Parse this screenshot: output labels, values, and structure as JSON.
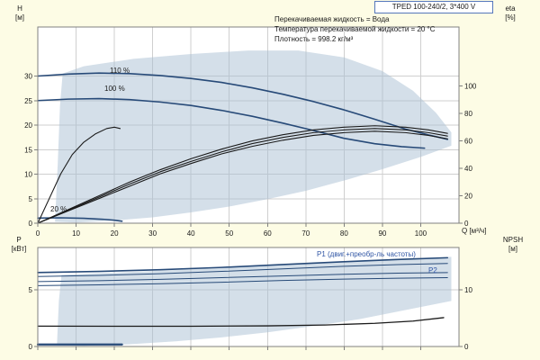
{
  "header": {
    "pump_label": "TPED 100-240/2, 3*400 V"
  },
  "info_lines": [
    "Перекачиваемая жидкость = Вода",
    "Температура перекачиваемой жидкости = 20 °C",
    "Плотность = 998.2 кг/м³"
  ],
  "labels": {
    "h_name": "H",
    "h_unit": "[м]",
    "eta_name": "eta",
    "eta_unit": "[%]",
    "q_label": "Q [м³/ч]",
    "p_name": "P",
    "p_unit": "[кВт]",
    "npsh_name": "NPSH",
    "npsh_unit": "[м]",
    "c110": "110 %",
    "c100": "100 %",
    "c20": "20 %",
    "p1": "P1 (двиг.+преобр-ль частоты)",
    "p2": "P2"
  },
  "colors": {
    "bg": "#fdfce5",
    "plot_bg": "#ffffff",
    "grid": "#cfcfcf",
    "axis": "#808080",
    "navy": "#274a78",
    "black": "#1a1a1a",
    "band": "#a9c0d4",
    "blue_text": "#2f55a4",
    "title_border": "#5577bb"
  },
  "chart_data": [
    {
      "type": "line",
      "name": "head-efficiency-chart",
      "title": "TPED 100-240/2, 3*400 V",
      "x": {
        "label": "Q [м³/ч]",
        "min": 0,
        "max": 110,
        "ticks": [
          0,
          10,
          20,
          30,
          40,
          50,
          60,
          70,
          80,
          90,
          100
        ]
      },
      "y_left": {
        "label": "H [м]",
        "min": 0,
        "max": 40,
        "ticks": [
          0,
          5,
          10,
          15,
          20,
          25,
          30
        ]
      },
      "y_right": {
        "label": "eta [%]",
        "min": 0,
        "max": 143,
        "ticks": [
          0,
          20,
          40,
          60,
          80,
          100
        ]
      },
      "band": {
        "axis": "left",
        "polygon": [
          [
            4.5,
            0.3
          ],
          [
            5.2,
            12
          ],
          [
            5.8,
            24
          ],
          [
            6.5,
            30.5
          ],
          [
            12,
            32
          ],
          [
            25,
            33.5
          ],
          [
            40,
            34.5
          ],
          [
            55,
            35.2
          ],
          [
            68,
            35.2
          ],
          [
            80,
            33.8
          ],
          [
            90,
            31
          ],
          [
            98,
            27
          ],
          [
            104,
            22.5
          ],
          [
            108,
            18.5
          ],
          [
            108,
            15.8
          ],
          [
            100,
            13.5
          ],
          [
            90,
            11.0
          ],
          [
            80,
            8.7
          ],
          [
            70,
            6.6
          ],
          [
            60,
            4.9
          ],
          [
            50,
            3.4
          ],
          [
            40,
            2.2
          ],
          [
            30,
            1.2
          ],
          [
            20,
            0.55
          ],
          [
            10,
            0.14
          ]
        ]
      },
      "series": [
        {
          "name": "speed-110-pct",
          "axis": "left",
          "color": "navy",
          "width": 1.6,
          "points": [
            [
              0,
              30
            ],
            [
              8,
              30.4
            ],
            [
              16,
              30.6
            ],
            [
              24,
              30.5
            ],
            [
              32,
              30.1
            ],
            [
              40,
              29.5
            ],
            [
              48,
              28.7
            ],
            [
              56,
              27.6
            ],
            [
              64,
              26.3
            ],
            [
              72,
              24.8
            ],
            [
              80,
              23.1
            ],
            [
              88,
              21.2
            ],
            [
              96,
              19.2
            ],
            [
              102,
              18.0
            ],
            [
              107,
              17.1
            ]
          ]
        },
        {
          "name": "speed-100-pct",
          "axis": "left",
          "color": "navy",
          "width": 1.6,
          "points": [
            [
              0,
              25
            ],
            [
              8,
              25.3
            ],
            [
              16,
              25.4
            ],
            [
              24,
              25.2
            ],
            [
              32,
              24.7
            ],
            [
              40,
              24.0
            ],
            [
              48,
              23.0
            ],
            [
              56,
              21.8
            ],
            [
              64,
              20.4
            ],
            [
              72,
              18.9
            ],
            [
              80,
              17.3
            ],
            [
              88,
              16.2
            ],
            [
              95,
              15.6
            ],
            [
              101,
              15.3
            ]
          ]
        },
        {
          "name": "speed-20-pct",
          "axis": "left",
          "color": "navy",
          "width": 1.6,
          "points": [
            [
              0,
              1.05
            ],
            [
              6,
              1.1
            ],
            [
              12,
              1.0
            ],
            [
              17,
              0.8
            ],
            [
              20,
              0.6
            ],
            [
              22,
              0.4
            ]
          ]
        },
        {
          "name": "eta-pump",
          "axis": "right",
          "color": "black",
          "width": 1.1,
          "points": [
            [
              0,
              0
            ],
            [
              8,
              10
            ],
            [
              16,
              20
            ],
            [
              24,
              30
            ],
            [
              32,
              39
            ],
            [
              40,
              47
            ],
            [
              48,
              54
            ],
            [
              56,
              60
            ],
            [
              64,
              64.5
            ],
            [
              72,
              68
            ],
            [
              80,
              70
            ],
            [
              88,
              71
            ],
            [
              96,
              70
            ],
            [
              102,
              68
            ],
            [
              107,
              65.5
            ]
          ]
        },
        {
          "name": "eta-total",
          "axis": "right",
          "color": "black",
          "width": 1.1,
          "points": [
            [
              0,
              0
            ],
            [
              8,
              9
            ],
            [
              16,
              18
            ],
            [
              24,
              27
            ],
            [
              32,
              36
            ],
            [
              40,
              43.5
            ],
            [
              48,
              50.5
            ],
            [
              56,
              56
            ],
            [
              64,
              60.5
            ],
            [
              72,
              64
            ],
            [
              80,
              66
            ],
            [
              88,
              67
            ],
            [
              96,
              66
            ],
            [
              102,
              64
            ],
            [
              107,
              61.5
            ]
          ]
        },
        {
          "name": "eta-mid",
          "axis": "right",
          "color": "black",
          "width": 1.1,
          "points": [
            [
              0,
              0
            ],
            [
              8,
              9.5
            ],
            [
              16,
              19
            ],
            [
              24,
              28.5
            ],
            [
              32,
              37.5
            ],
            [
              40,
              45
            ],
            [
              48,
              52
            ],
            [
              56,
              58
            ],
            [
              64,
              62.5
            ],
            [
              72,
              66
            ],
            [
              80,
              68
            ],
            [
              88,
              69
            ],
            [
              96,
              68
            ],
            [
              102,
              66
            ],
            [
              107,
              63.5
            ]
          ]
        },
        {
          "name": "eta-min-speed",
          "axis": "right",
          "color": "black",
          "width": 1.1,
          "points": [
            [
              0,
              0
            ],
            [
              3,
              18
            ],
            [
              6,
              36
            ],
            [
              9,
              50
            ],
            [
              12,
              59
            ],
            [
              15,
              65
            ],
            [
              18,
              69
            ],
            [
              20,
              70
            ],
            [
              21.5,
              69
            ]
          ]
        }
      ]
    },
    {
      "type": "line",
      "name": "power-npsh-chart",
      "title": "",
      "x": {
        "label": "Q [м³/ч]",
        "min": 0,
        "max": 110,
        "ticks": [
          0,
          10,
          20,
          30,
          40,
          50,
          60,
          70,
          80,
          90,
          100
        ]
      },
      "y_left": {
        "label": "P [кВт]",
        "min": 0,
        "max": 8.7,
        "ticks": [
          0,
          5
        ]
      },
      "y_right": {
        "label": "NPSH [м]",
        "min": 0,
        "max": 17.5,
        "ticks": [
          0,
          10
        ]
      },
      "band": {
        "axis": "left",
        "polygon": [
          [
            5,
            0.1
          ],
          [
            5.5,
            4.0
          ],
          [
            6.2,
            6.3
          ],
          [
            16,
            6.45
          ],
          [
            28,
            6.6
          ],
          [
            40,
            6.78
          ],
          [
            52,
            6.98
          ],
          [
            64,
            7.2
          ],
          [
            76,
            7.42
          ],
          [
            88,
            7.62
          ],
          [
            98,
            7.76
          ],
          [
            108,
            7.88
          ],
          [
            108,
            4.0
          ],
          [
            96,
            3.2
          ],
          [
            84,
            2.4
          ],
          [
            72,
            1.8
          ],
          [
            60,
            1.25
          ],
          [
            48,
            0.8
          ],
          [
            36,
            0.45
          ],
          [
            24,
            0.2
          ],
          [
            12,
            0.06
          ]
        ]
      },
      "series": [
        {
          "name": "p1-max",
          "axis": "left",
          "color": "navy",
          "width": 1.6,
          "points": [
            [
              0,
              6.5
            ],
            [
              16,
              6.6
            ],
            [
              32,
              6.75
            ],
            [
              48,
              6.95
            ],
            [
              64,
              7.2
            ],
            [
              80,
              7.45
            ],
            [
              94,
              7.65
            ],
            [
              107,
              7.8
            ]
          ]
        },
        {
          "name": "p1-nominal",
          "axis": "left",
          "color": "navy",
          "width": 1.0,
          "points": [
            [
              0,
              6.15
            ],
            [
              16,
              6.25
            ],
            [
              32,
              6.4
            ],
            [
              48,
              6.6
            ],
            [
              64,
              6.82
            ],
            [
              80,
              7.05
            ],
            [
              94,
              7.2
            ],
            [
              107,
              7.3
            ]
          ]
        },
        {
          "name": "p2-max",
          "axis": "left",
          "color": "navy",
          "width": 1.0,
          "points": [
            [
              0,
              5.7
            ],
            [
              16,
              5.78
            ],
            [
              32,
              5.9
            ],
            [
              48,
              6.05
            ],
            [
              64,
              6.2
            ],
            [
              80,
              6.35
            ],
            [
              94,
              6.45
            ],
            [
              107,
              6.5
            ]
          ]
        },
        {
          "name": "p2-nominal",
          "axis": "left",
          "color": "navy",
          "width": 1.0,
          "points": [
            [
              0,
              5.35
            ],
            [
              16,
              5.42
            ],
            [
              32,
              5.52
            ],
            [
              48,
              5.65
            ],
            [
              64,
              5.8
            ],
            [
              80,
              5.92
            ],
            [
              94,
              6.0
            ],
            [
              107,
              6.05
            ]
          ]
        },
        {
          "name": "npsh",
          "axis": "right",
          "color": "black",
          "width": 1.3,
          "points": [
            [
              0,
              3.6
            ],
            [
              20,
              3.58
            ],
            [
              40,
              3.58
            ],
            [
              60,
              3.65
            ],
            [
              75,
              3.8
            ],
            [
              88,
              4.1
            ],
            [
              98,
              4.5
            ],
            [
              106,
              5.1
            ]
          ]
        },
        {
          "name": "p-min-speed",
          "axis": "left",
          "color": "navy",
          "width": 2.2,
          "points": [
            [
              0,
              0.18
            ],
            [
              22,
              0.18
            ]
          ]
        }
      ]
    }
  ]
}
